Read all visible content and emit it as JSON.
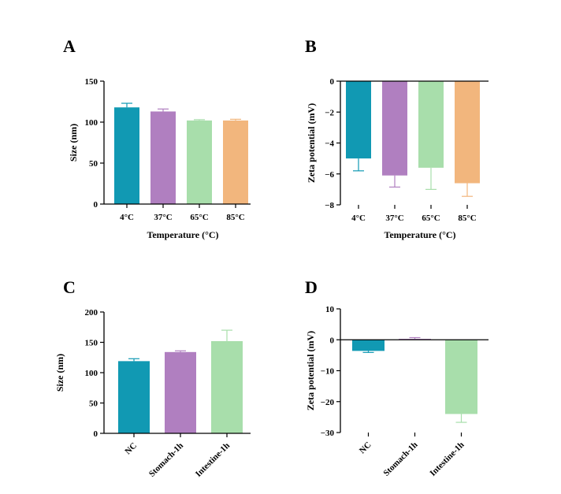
{
  "colors": {
    "teal": "#1199b3",
    "purple": "#b07fc0",
    "green": "#a8deab",
    "orange": "#f2b67d",
    "axis": "#000000"
  },
  "chart_data": [
    {
      "panel": "A",
      "type": "bar",
      "categories": [
        "4°C",
        "37°C",
        "65°C",
        "85°C"
      ],
      "values": [
        118,
        113,
        102,
        102
      ],
      "errors": [
        5,
        3,
        1,
        1.5
      ],
      "xlabel": "Temperature (°C)",
      "ylabel": "Size (nm)",
      "ylim": [
        0,
        150
      ],
      "yticks": [
        0,
        50,
        100,
        150
      ],
      "colors": [
        "#1199b3",
        "#b07fc0",
        "#a8deab",
        "#f2b67d"
      ],
      "rotate_labels": false
    },
    {
      "panel": "B",
      "type": "bar",
      "categories": [
        "4°C",
        "37°C",
        "65°C",
        "85°C"
      ],
      "values": [
        -5.0,
        -6.1,
        -5.6,
        -6.6
      ],
      "errors": [
        0.8,
        0.75,
        1.4,
        0.85
      ],
      "xlabel": "Temperature (°C)",
      "ylabel": "Zeta potential (mV)",
      "ylim": [
        -8,
        0
      ],
      "yticks": [
        0,
        -2,
        -4,
        -6,
        -8
      ],
      "colors": [
        "#1199b3",
        "#b07fc0",
        "#a8deab",
        "#f2b67d"
      ],
      "rotate_labels": false
    },
    {
      "panel": "C",
      "type": "bar",
      "categories": [
        "NC",
        "Stomach-1h",
        "Intestine-1h"
      ],
      "values": [
        119,
        134,
        152
      ],
      "errors": [
        4,
        2,
        18
      ],
      "xlabel": "",
      "ylabel": "Size (nm)",
      "ylim": [
        0,
        200
      ],
      "yticks": [
        0,
        50,
        100,
        150,
        200
      ],
      "colors": [
        "#1199b3",
        "#b07fc0",
        "#a8deab"
      ],
      "rotate_labels": true
    },
    {
      "panel": "D",
      "type": "bar",
      "categories": [
        "NC",
        "Stomach-1h",
        "Intestine-1h"
      ],
      "values": [
        -3.6,
        0.3,
        -24
      ],
      "errors": [
        0.5,
        0.4,
        2.7
      ],
      "xlabel": "",
      "ylabel": "Zeta potential (mV)",
      "ylim": [
        -30,
        10
      ],
      "yticks": [
        10,
        0,
        -10,
        -20,
        -30
      ],
      "colors": [
        "#1199b3",
        "#b07fc0",
        "#a8deab"
      ],
      "rotate_labels": true
    }
  ]
}
